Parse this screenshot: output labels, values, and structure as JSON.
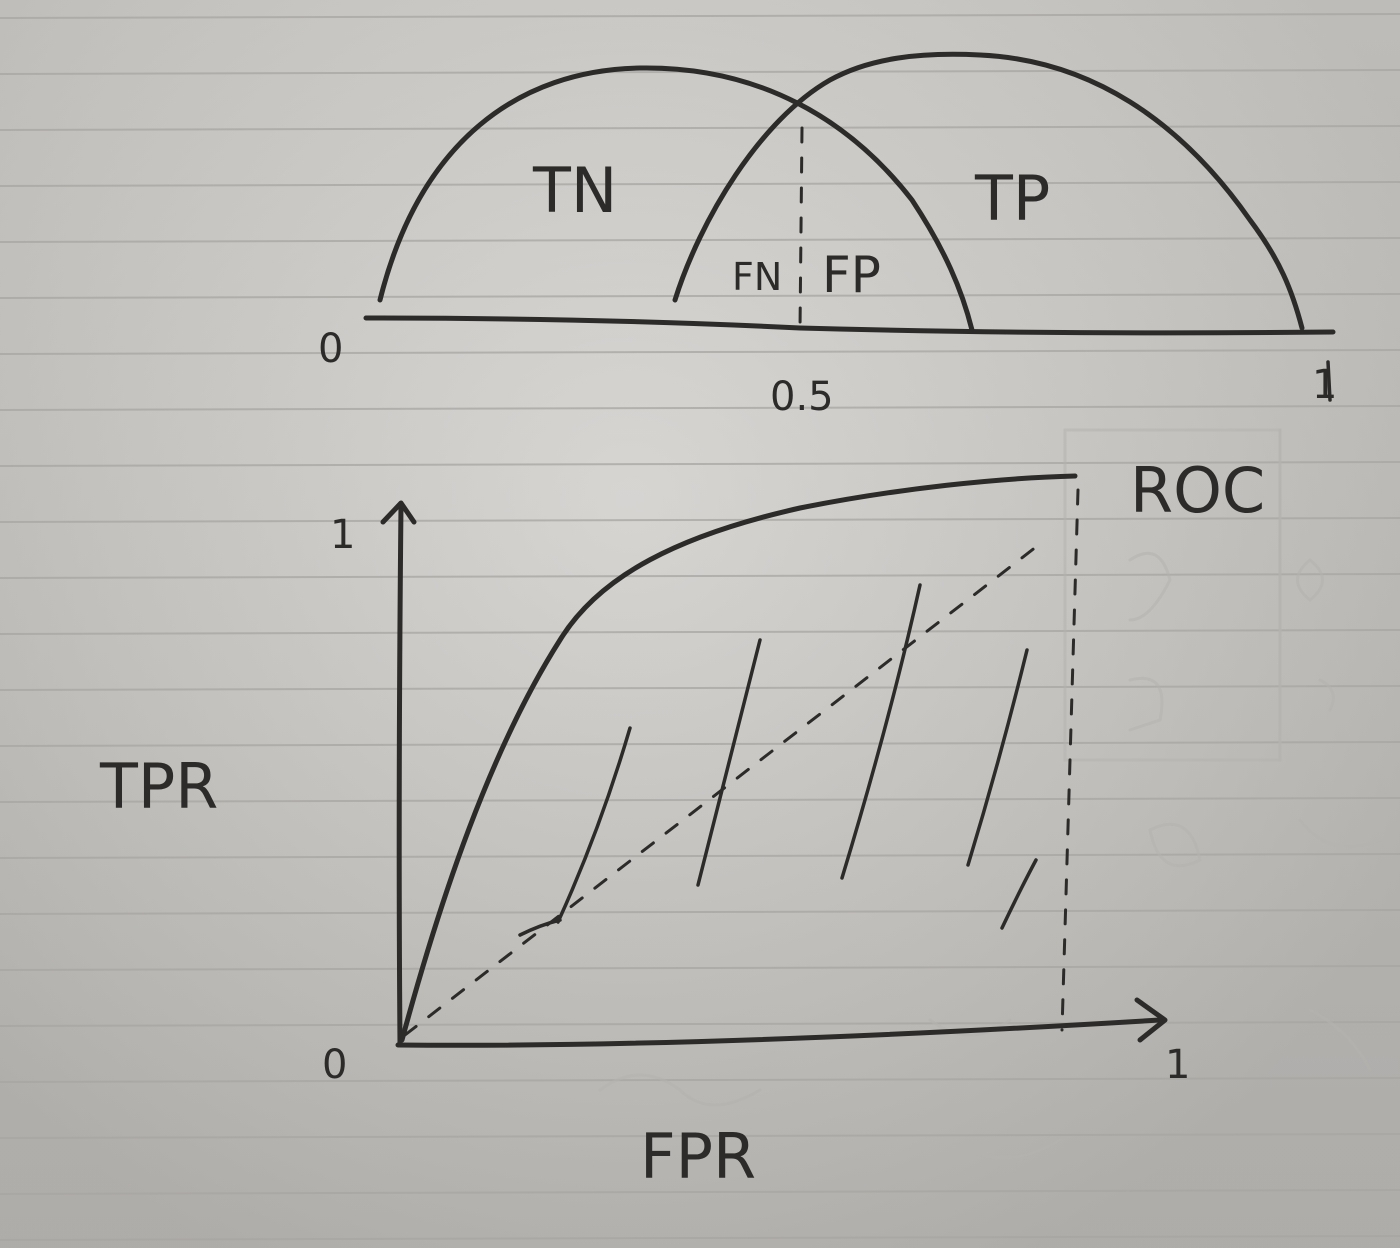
{
  "distributions": {
    "zero_label": "0",
    "mid_label": "0.5",
    "one_label": "1",
    "tn_label": "TN",
    "tp_label": "TP",
    "fn_label": "FN",
    "fp_label": "FP"
  },
  "roc": {
    "curve_label": "ROC",
    "x_axis_label": "FPR",
    "y_axis_label": "TPR",
    "origin_label": "0",
    "x_max_label": "1",
    "y_max_label": "1"
  },
  "colors": {
    "ink": "#2d2b2a",
    "paper": "#cac8c4",
    "ruling": "#a8a6a2"
  }
}
